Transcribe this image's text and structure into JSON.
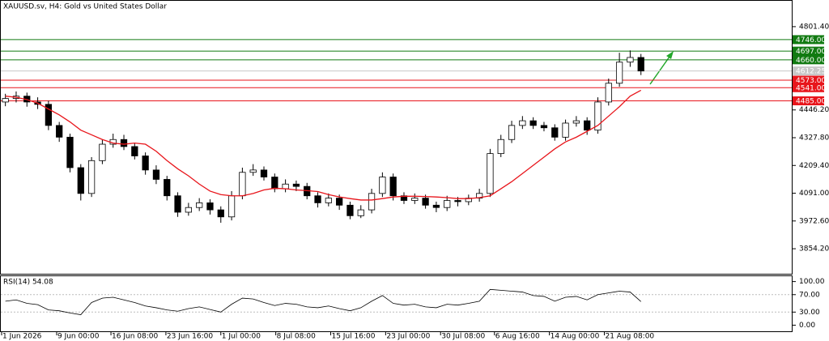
{
  "chart_data": [
    {
      "type": "candlestick",
      "title": "XAUUSD.sv, H4:  Gold vs United States Dollar",
      "open": [
        4480,
        4495,
        4505,
        4480,
        4470,
        4380,
        4330,
        4200,
        4090,
        4230,
        4300,
        4320,
        4290,
        4250,
        4190,
        4150,
        4080,
        4010,
        4030,
        4050,
        4020,
        3990,
        4080,
        4180,
        4190,
        4160,
        4110,
        4130,
        4120,
        4080,
        4050,
        4070,
        4040,
        3995,
        4020,
        4090,
        4160,
        4080,
        4060,
        4070,
        4040,
        4030,
        4060,
        4055,
        4070,
        4090,
        4260,
        4320,
        4380,
        4400,
        4380,
        4370,
        4330,
        4390,
        4400,
        4360,
        4480,
        4560,
        4650,
        4670
      ],
      "high": [
        4515,
        4525,
        4520,
        4500,
        4485,
        4395,
        4345,
        4215,
        4245,
        4320,
        4345,
        4340,
        4305,
        4265,
        4210,
        4165,
        4095,
        4050,
        4070,
        4065,
        4035,
        4100,
        4200,
        4215,
        4205,
        4175,
        4150,
        4145,
        4135,
        4095,
        4090,
        4085,
        4055,
        4040,
        4110,
        4180,
        4175,
        4095,
        4090,
        4085,
        4055,
        4080,
        4075,
        4085,
        4110,
        4280,
        4340,
        4400,
        4420,
        4415,
        4395,
        4385,
        4405,
        4420,
        4415,
        4500,
        4580,
        4690,
        4700,
        4685
      ],
      "low": [
        4462,
        4478,
        4460,
        4450,
        4360,
        4310,
        4180,
        4060,
        4075,
        4215,
        4285,
        4275,
        4235,
        4170,
        4130,
        4060,
        3990,
        3995,
        4015,
        4000,
        3965,
        3975,
        4065,
        4165,
        4145,
        4095,
        4095,
        4100,
        4065,
        4030,
        4035,
        4020,
        3980,
        3985,
        4005,
        4075,
        4060,
        4045,
        4045,
        4025,
        4010,
        4015,
        4035,
        4040,
        4055,
        4075,
        4245,
        4305,
        4365,
        4365,
        4355,
        4315,
        4315,
        4375,
        4340,
        4345,
        4465,
        4545,
        4630,
        4595
      ],
      "close": [
        4495,
        4505,
        4480,
        4470,
        4380,
        4330,
        4200,
        4090,
        4230,
        4300,
        4320,
        4290,
        4250,
        4190,
        4150,
        4080,
        4010,
        4030,
        4050,
        4020,
        3990,
        4080,
        4180,
        4190,
        4160,
        4110,
        4130,
        4120,
        4080,
        4050,
        4070,
        4040,
        3995,
        4020,
        4090,
        4160,
        4080,
        4060,
        4070,
        4040,
        4030,
        4060,
        4055,
        4070,
        4090,
        4260,
        4320,
        4380,
        4400,
        4380,
        4370,
        4330,
        4390,
        4400,
        4360,
        4480,
        4560,
        4650,
        4670,
        4612.25
      ],
      "up_color": "#ffffff",
      "down_color": "#000000",
      "ma": {
        "color": "#e8151b",
        "values": [
          4505,
          4500,
          4490,
          4475,
          4450,
          4425,
          4395,
          4360,
          4340,
          4320,
          4305,
          4300,
          4305,
          4300,
          4270,
          4230,
          4195,
          4165,
          4130,
          4100,
          4085,
          4080,
          4080,
          4090,
          4105,
          4112,
          4110,
          4105,
          4102,
          4098,
          4085,
          4075,
          4068,
          4062,
          4062,
          4068,
          4075,
          4078,
          4078,
          4077,
          4075,
          4072,
          4068,
          4068,
          4072,
          4080,
          4110,
          4140,
          4175,
          4210,
          4245,
          4280,
          4310,
          4330,
          4355,
          4380,
          4420,
          4460,
          4505,
          4530
        ]
      },
      "levels": [
        {
          "value": 4746,
          "label": "4746.00",
          "color": "#117a11"
        },
        {
          "value": 4697,
          "label": "4697.00",
          "color": "#117a11"
        },
        {
          "value": 4660,
          "label": "4660.00",
          "color": "#117a11"
        },
        {
          "value": 4612.25,
          "label": "4612.25",
          "color": "#c8c8c8"
        },
        {
          "value": 4573,
          "label": "4573.00",
          "color": "#e8151b"
        },
        {
          "value": 4541,
          "label": "4541.00",
          "color": "#e8151b"
        },
        {
          "value": 4485,
          "label": "4485.00",
          "color": "#e8151b"
        }
      ],
      "ylim": [
        3747.4,
        4911.6
      ],
      "yticks": [
        {
          "value": 4801.4,
          "label": "4801.40"
        },
        {
          "value": 4446.2,
          "label": "4446.20"
        },
        {
          "value": 4327.8,
          "label": "4327.80"
        },
        {
          "value": 4209.4,
          "label": "4209.40"
        },
        {
          "value": 4091,
          "label": "4091.00"
        },
        {
          "value": 3972.6,
          "label": "3972.60"
        },
        {
          "value": 3854.2,
          "label": "3854.20"
        }
      ],
      "xlim": [
        0,
        73.5
      ],
      "xticks": [
        {
          "value": 0.15,
          "label": "1 Jun 2026"
        },
        {
          "value": 5.26,
          "label": "9 Jun 00:00"
        },
        {
          "value": 10.3,
          "label": "16 Jun 08:00"
        },
        {
          "value": 15.4,
          "label": "23 Jun 16:00"
        },
        {
          "value": 20.5,
          "label": "1 Jul 00:00"
        },
        {
          "value": 25.6,
          "label": "8 Jul 08:00"
        },
        {
          "value": 30.7,
          "label": "15 Jul 16:00"
        },
        {
          "value": 35.8,
          "label": "23 Jul 00:00"
        },
        {
          "value": 40.9,
          "label": "30 Jul 08:00"
        },
        {
          "value": 45.9,
          "label": "6 Aug 16:00"
        },
        {
          "value": 51.0,
          "label": "14 Aug 00:00"
        },
        {
          "value": 56.1,
          "label": "21 Aug 08:00"
        }
      ]
    },
    {
      "type": "line",
      "title": "RSI(14) 54.08",
      "color": "#000000",
      "values": [
        55,
        58,
        50,
        47,
        35,
        33,
        28,
        24,
        52,
        62,
        64,
        58,
        52,
        44,
        40,
        35,
        32,
        38,
        42,
        36,
        30,
        48,
        62,
        60,
        52,
        45,
        50,
        48,
        42,
        40,
        44,
        38,
        33,
        40,
        55,
        68,
        50,
        46,
        48,
        42,
        40,
        48,
        46,
        50,
        55,
        82,
        80,
        78,
        76,
        68,
        66,
        55,
        64,
        66,
        58,
        70,
        74,
        78,
        76,
        54.08
      ],
      "levels": [
        70,
        30
      ],
      "ylim": [
        -14,
        112.3
      ],
      "yticks": [
        {
          "value": 100,
          "label": "100.00"
        },
        {
          "value": 70,
          "label": "70.00"
        },
        {
          "value": 30,
          "label": "30.00"
        },
        {
          "value": 0,
          "label": "0.00"
        }
      ]
    }
  ]
}
